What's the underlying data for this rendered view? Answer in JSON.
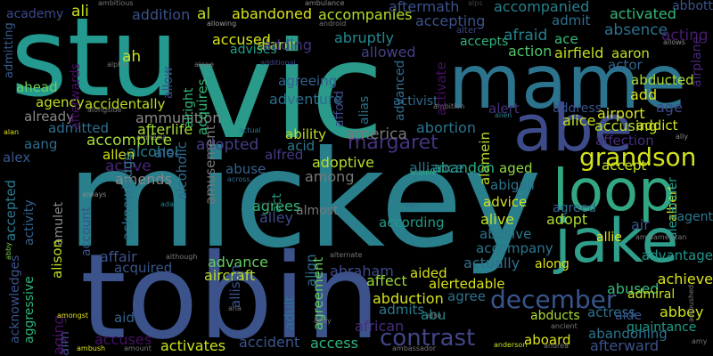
{
  "word_cloud": {
    "background": "#000000",
    "words": [
      {
        "text": "stu",
        "color": "#23998f"
      },
      {
        "text": "vic",
        "color": "#2a9a8b"
      },
      {
        "text": "mickey",
        "color": "#2a7f8c"
      },
      {
        "text": "tobin",
        "color": "#3b528b"
      },
      {
        "text": "mame",
        "color": "#2c738e"
      },
      {
        "text": "abe",
        "color": "#3e4b8a"
      },
      {
        "text": "loop",
        "color": "#31a783"
      },
      {
        "text": "jake",
        "color": "#2f9e8a"
      },
      {
        "text": "grandson",
        "color": "#d2e21b"
      },
      {
        "text": "margaret",
        "color": "#46327e"
      },
      {
        "text": "december",
        "color": "#39558c"
      },
      {
        "text": "contrast",
        "color": "#404588"
      },
      {
        "text": "academy",
        "color": "#3e4a89"
      },
      {
        "text": "ali",
        "color": "#c8e020"
      },
      {
        "text": "ambitious",
        "color": "#7a7a7a"
      },
      {
        "text": "addition",
        "color": "#3b518b"
      },
      {
        "text": "al",
        "color": "#c2df23"
      },
      {
        "text": "abandoned",
        "color": "#d8e219"
      },
      {
        "text": "ambulance",
        "color": "#888888"
      },
      {
        "text": "aftermath",
        "color": "#3b528b"
      },
      {
        "text": "accompanied",
        "color": "#26818e"
      },
      {
        "text": "activated",
        "color": "#35b779"
      },
      {
        "text": "abbott",
        "color": "#3a548c"
      },
      {
        "text": "allowing",
        "color": "#9a9a9a"
      },
      {
        "text": "android",
        "color": "#777777"
      },
      {
        "text": "accompanies",
        "color": "#b5de2b"
      },
      {
        "text": "accepting",
        "color": "#3b518b"
      },
      {
        "text": "admit",
        "color": "#2d708e"
      },
      {
        "text": "absence",
        "color": "#2c728e"
      },
      {
        "text": "acting",
        "color": "#481b6d"
      },
      {
        "text": "allows",
        "color": "#888888"
      },
      {
        "text": "admitting",
        "color": "#38598c"
      },
      {
        "text": "alter",
        "color": "#3f4788"
      },
      {
        "text": "accused",
        "color": "#d5e21a"
      },
      {
        "text": "alarm",
        "color": "#9fda3a"
      },
      {
        "text": "abruptly",
        "color": "#23888e"
      },
      {
        "text": "afraid",
        "color": "#26818e"
      },
      {
        "text": "ace",
        "color": "#38b977"
      },
      {
        "text": "airplane",
        "color": "#482677"
      },
      {
        "text": "advises",
        "color": "#1f9f88"
      },
      {
        "text": "adding",
        "color": "#46337f"
      },
      {
        "text": "allowed",
        "color": "#424186"
      },
      {
        "text": "accepts",
        "color": "#2fb47c"
      },
      {
        "text": "action",
        "color": "#50c46a"
      },
      {
        "text": "airfield",
        "color": "#c2df23"
      },
      {
        "text": "aaron",
        "color": "#c0df25"
      },
      {
        "text": "ah",
        "color": "#c5e021"
      },
      {
        "text": "alpha",
        "color": "#777777"
      },
      {
        "text": "alone",
        "color": "#777777"
      },
      {
        "text": "additional",
        "color": "#404588"
      },
      {
        "text": "actor",
        "color": "#33638d"
      },
      {
        "text": "ahead",
        "color": "#6ccd5a"
      },
      {
        "text": "agreeing",
        "color": "#34618d"
      },
      {
        "text": "afford",
        "color": "#3e4989"
      },
      {
        "text": "alias",
        "color": "#2b748e"
      },
      {
        "text": "advanced",
        "color": "#2e6e8e"
      },
      {
        "text": "abducted",
        "color": "#addc30"
      },
      {
        "text": "add",
        "color": "#d8e219"
      },
      {
        "text": "agency",
        "color": "#c2df23"
      },
      {
        "text": "adventure",
        "color": "#2e6d8e"
      },
      {
        "text": "activist",
        "color": "#2f6c8e"
      },
      {
        "text": "alert",
        "color": "#46327e"
      },
      {
        "text": "address",
        "color": "#3b528b"
      },
      {
        "text": "airport",
        "color": "#d2e21b"
      },
      {
        "text": "age",
        "color": "#3e4a89"
      },
      {
        "text": "already",
        "color": "#888888"
      },
      {
        "text": "alongside",
        "color": "#777777"
      },
      {
        "text": "ambition",
        "color": "#777777"
      },
      {
        "text": "alien",
        "color": "#26818e"
      },
      {
        "text": "alice",
        "color": "#c0df25"
      },
      {
        "text": "accusing",
        "color": "#b8de29"
      },
      {
        "text": "addict",
        "color": "#d0e11c"
      },
      {
        "text": "ammunition",
        "color": "#888888"
      },
      {
        "text": "actual",
        "color": "#2b758e"
      },
      {
        "text": "abortion",
        "color": "#2c738e"
      },
      {
        "text": "admitted",
        "color": "#2e6f8e"
      },
      {
        "text": "afterlife",
        "color": "#a5db36"
      },
      {
        "text": "america",
        "color": "#777777"
      },
      {
        "text": "affection",
        "color": "#472e7c"
      },
      {
        "text": "amnesia",
        "color": "#888888"
      },
      {
        "text": "ally",
        "color": "#888888"
      },
      {
        "text": "alan",
        "color": "#d8e219"
      },
      {
        "text": "accomplice",
        "color": "#a2da37"
      },
      {
        "text": "adopted",
        "color": "#424086"
      },
      {
        "text": "ability",
        "color": "#c2df23"
      },
      {
        "text": "aang",
        "color": "#2e6d8e"
      },
      {
        "text": "alcohol",
        "color": "#277f8e"
      },
      {
        "text": "acid",
        "color": "#29798e"
      },
      {
        "text": "alamein",
        "color": "#b8de29"
      },
      {
        "text": "alex",
        "color": "#39568c"
      },
      {
        "text": "allen",
        "color": "#d2e21b"
      },
      {
        "text": "alec",
        "color": "#31668e"
      },
      {
        "text": "alfred",
        "color": "#443a83"
      },
      {
        "text": "accept",
        "color": "#c8e020"
      },
      {
        "text": "adoptive",
        "color": "#b5de2b"
      },
      {
        "text": "active",
        "color": "#482576"
      },
      {
        "text": "abuse",
        "color": "#34618d"
      },
      {
        "text": "act",
        "color": "#20a386"
      },
      {
        "text": "aged",
        "color": "#90d743"
      },
      {
        "text": "abandon",
        "color": "#29af7f"
      },
      {
        "text": "alliance",
        "color": "#2c728e"
      },
      {
        "text": "albert",
        "color": "#e5e419"
      },
      {
        "text": "amends",
        "color": "#888888"
      },
      {
        "text": "across",
        "color": "#2e6e8e"
      },
      {
        "text": "among",
        "color": "#777777"
      },
      {
        "text": "acquire",
        "color": "#2fb47c"
      },
      {
        "text": "accepted",
        "color": "#2a788e"
      },
      {
        "text": "abigail",
        "color": "#2c738e"
      },
      {
        "text": "alexander",
        "color": "#1f968b"
      },
      {
        "text": "acknowledge",
        "color": "#2c738e"
      },
      {
        "text": "alcoholic",
        "color": "#2f6b8e"
      },
      {
        "text": "amusement",
        "color": "#777777"
      },
      {
        "text": "abby",
        "color": "#7ad151"
      },
      {
        "text": "advice",
        "color": "#d2e21b"
      },
      {
        "text": "agreed",
        "color": "#31688e"
      },
      {
        "text": "agrees",
        "color": "#35b779"
      },
      {
        "text": "alley",
        "color": "#3e4a89"
      },
      {
        "text": "almost",
        "color": "#777777"
      },
      {
        "text": "ago",
        "color": "#2f6c8e"
      },
      {
        "text": "according",
        "color": "#1e9b8a"
      },
      {
        "text": "alive",
        "color": "#c5e021"
      },
      {
        "text": "adopt",
        "color": "#addc30"
      },
      {
        "text": "air",
        "color": "#3b528b"
      },
      {
        "text": "agent",
        "color": "#2a7a8e"
      },
      {
        "text": "advantage",
        "color": "#1f968b"
      },
      {
        "text": "activity",
        "color": "#33638d"
      },
      {
        "text": "account",
        "color": "#3b528b"
      },
      {
        "text": "amulet",
        "color": "#888888"
      },
      {
        "text": "always",
        "color": "#888888"
      },
      {
        "text": "adam",
        "color": "#26828e"
      },
      {
        "text": "abusive",
        "color": "#2b758e"
      },
      {
        "text": "amid",
        "color": "#777777"
      },
      {
        "text": "american",
        "color": "#777777"
      },
      {
        "text": "allie",
        "color": "#e7e419"
      },
      {
        "text": "accompany",
        "color": "#2a778e"
      },
      {
        "text": "alison",
        "color": "#bddf26"
      },
      {
        "text": "affair",
        "color": "#3b528b"
      },
      {
        "text": "acquired",
        "color": "#39568c"
      },
      {
        "text": "advance",
        "color": "#63cb5f"
      },
      {
        "text": "aircraft",
        "color": "#bddf26"
      },
      {
        "text": "abraham",
        "color": "#3e4a89"
      },
      {
        "text": "actually",
        "color": "#2d708e"
      },
      {
        "text": "although",
        "color": "#777777"
      },
      {
        "text": "along",
        "color": "#dde318"
      },
      {
        "text": "acknowledges",
        "color": "#3b528b"
      },
      {
        "text": "aggressive",
        "color": "#2fb47c"
      },
      {
        "text": "allison",
        "color": "#3b528b"
      },
      {
        "text": "align",
        "color": "#2d708e"
      },
      {
        "text": "adult",
        "color": "#2d708e"
      },
      {
        "text": "agreement",
        "color": "#65cb5e"
      },
      {
        "text": "alternate",
        "color": "#777777"
      },
      {
        "text": "aided",
        "color": "#d8e219"
      },
      {
        "text": "affect",
        "color": "#9bd93c"
      },
      {
        "text": "alertedable",
        "color": "#d8e219"
      },
      {
        "text": "abused",
        "color": "#35b779"
      },
      {
        "text": "achieve",
        "color": "#d8e219"
      },
      {
        "text": "admiral",
        "color": "#c5e021"
      },
      {
        "text": "abduction",
        "color": "#d5e21a"
      },
      {
        "text": "agree",
        "color": "#2c728e"
      },
      {
        "text": "aging",
        "color": "#471063"
      },
      {
        "text": "abbey",
        "color": "#cde11d"
      },
      {
        "text": "admits",
        "color": "#2a788e"
      },
      {
        "text": "abu",
        "color": "#25858e"
      },
      {
        "text": "african",
        "color": "#472d7b"
      },
      {
        "text": "abducts",
        "color": "#addc30"
      },
      {
        "text": "actress",
        "color": "#2c728e"
      },
      {
        "text": "aide",
        "color": "#3a548c"
      },
      {
        "text": "quaintance",
        "color": "#1e9b8a"
      },
      {
        "text": "aim",
        "color": "#3e4989"
      },
      {
        "text": "aid",
        "color": "#33638d"
      },
      {
        "text": "amongst",
        "color": "#dde318"
      },
      {
        "text": "accuses",
        "color": "#471063"
      },
      {
        "text": "activates",
        "color": "#cde11d"
      },
      {
        "text": "accident",
        "color": "#39568c"
      },
      {
        "text": "access",
        "color": "#2fb47c"
      },
      {
        "text": "ana",
        "color": "#777777"
      },
      {
        "text": "andy",
        "color": "#777777"
      },
      {
        "text": "also",
        "color": "#777777"
      },
      {
        "text": "ancient",
        "color": "#777777"
      },
      {
        "text": "abandoning",
        "color": "#2c728e"
      },
      {
        "text": "ambushed",
        "color": "#777777"
      },
      {
        "text": "amy",
        "color": "#777777"
      },
      {
        "text": "aboard",
        "color": "#dde318"
      },
      {
        "text": "anderson",
        "color": "#c8e020"
      },
      {
        "text": "andrea",
        "color": "#777777"
      },
      {
        "text": "afterward",
        "color": "#3b518b"
      },
      {
        "text": "ambush",
        "color": "#dde318"
      },
      {
        "text": "amount",
        "color": "#777777"
      },
      {
        "text": "ambassador",
        "color": "#777777"
      },
      {
        "text": "afterwards",
        "color": "#471063"
      },
      {
        "text": "alright",
        "color": "#35b779"
      },
      {
        "text": "acquires",
        "color": "#35b779"
      },
      {
        "text": "allow",
        "color": "#3e4a89"
      },
      {
        "text": "andrew",
        "color": "#2a2a2a"
      },
      {
        "text": "activate",
        "color": "#471063"
      },
      {
        "text": "accidentally",
        "color": "#bddf26"
      },
      {
        "text": "alps",
        "color": "#444444"
      }
    ]
  }
}
